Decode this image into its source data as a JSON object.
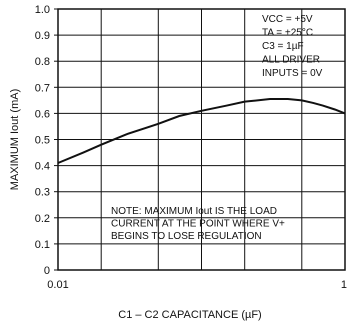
{
  "chart_data": {
    "type": "line",
    "title": "",
    "xlabel": "C1 – C2 CAPACITANCE (µF)",
    "ylabel": "MAXIMUM Iₒᵤₜ (mA)",
    "ylabel_display": "MAXIMUM Iout (mA)",
    "x_scale": "log",
    "xlim": [
      0.01,
      1
    ],
    "ylim": [
      0,
      1.0
    ],
    "x_tick_labels": [
      "0.01",
      "1"
    ],
    "y_ticks": [
      0,
      0.1,
      0.2,
      0.3,
      0.4,
      0.5,
      0.6,
      0.7,
      0.8,
      0.9,
      1.0
    ],
    "y_tick_labels": [
      "0",
      "0.1",
      "0.2",
      "0.3",
      "0.4",
      "0.5",
      "0.6",
      "0.7",
      "0.8",
      "0.9",
      "1.0"
    ],
    "grid": true,
    "series": [
      {
        "x": [
          0.01,
          0.015,
          0.02,
          0.03,
          0.05,
          0.07,
          0.1,
          0.15,
          0.2,
          0.3,
          0.4,
          0.5,
          0.6,
          0.7,
          0.85,
          1.0
        ],
        "y": [
          0.41,
          0.45,
          0.48,
          0.52,
          0.56,
          0.59,
          0.61,
          0.63,
          0.645,
          0.655,
          0.655,
          0.65,
          0.64,
          0.63,
          0.615,
          0.6
        ]
      }
    ],
    "conditions": [
      "VCC = +5V",
      "TA = +25°C",
      "C3 = 1µF",
      "ALL DRIVER",
      "INPUTS = 0V"
    ],
    "note": [
      "NOTE: MAXIMUM Iout IS THE LOAD",
      "CURRENT AT THE POINT WHERE V+",
      "BEGINS TO LOSE REGULATION"
    ]
  }
}
